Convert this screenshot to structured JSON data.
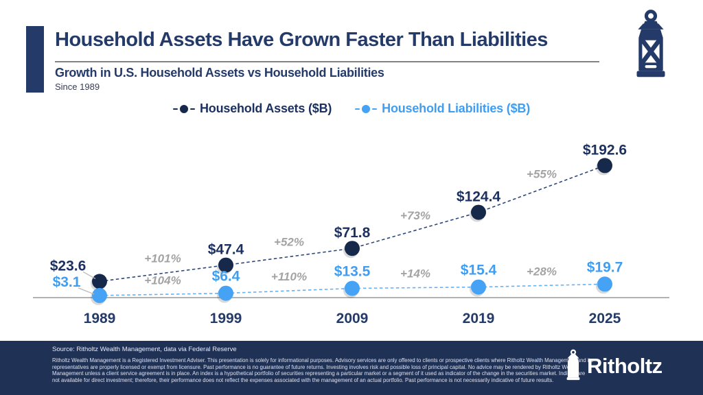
{
  "header": {
    "title": "Household Assets Have Grown Faster Than Liabilities",
    "subtitle": "Growth in U.S. Household Assets vs Household Liabilities",
    "since": "Since 1989"
  },
  "legend": [
    {
      "label": "Household Assets ($B)",
      "color": "#16294b",
      "text_color": "#1d3160"
    },
    {
      "label": "Household Liabilities ($B)",
      "color": "#46a2f4",
      "text_color": "#3f9ef2"
    }
  ],
  "chart_data": {
    "type": "line",
    "categories": [
      "1989",
      "1999",
      "2009",
      "2019",
      "2025"
    ],
    "series": [
      {
        "name": "Household Assets ($B)",
        "values": [
          23.6,
          47.4,
          71.8,
          124.4,
          192.6
        ],
        "point_labels": [
          "$23.6",
          "$47.4",
          "$71.8",
          "$124.4",
          "$192.6"
        ],
        "growth_labels": [
          "+101%",
          "+52%",
          "+73%",
          "+55%"
        ],
        "color": "#16294b",
        "line_color": "#2e4678",
        "label_color": "#1d3160"
      },
      {
        "name": "Household Liabilities ($B)",
        "values": [
          3.1,
          6.4,
          13.5,
          15.4,
          19.7
        ],
        "point_labels": [
          "$3.1",
          "$6.4",
          "$13.5",
          "$15.4",
          "$19.7"
        ],
        "growth_labels": [
          "+104%",
          "+110%",
          "+14%",
          "+28%"
        ],
        "color": "#46a2f4",
        "line_color": "#63b0f6",
        "label_color": "#3f9ef2"
      }
    ],
    "title": "Growth in U.S. Household Assets vs Household Liabilities",
    "xlabel": "",
    "ylabel": "",
    "ylim": [
      0,
      200
    ],
    "grid": false,
    "line_style": "dashed",
    "legend_position": "top",
    "growth_label_color": "#a3a3a3",
    "axis_color": "#b1b1b1",
    "year_label_color": "#243a68"
  },
  "footer": {
    "source": "Source: Ritholtz Wealth Management, data via Federal Reserve",
    "disclaimer": "Ritholtz Wealth Management is a Registered Investment Adviser. This presentation is solely for informational purposes. Advisory services are only offered to clients or prospective clients where Ritholtz Wealth Management and its representatives are properly licensed or exempt from licensure. Past performance is no guarantee of future returns. Investing involves risk and possible loss of principal capital. No advice may be rendered by Ritholtz Wealth Management unless a client service agreement is in place. An index is a hypothetical portfolio of securities representing a particular market or a segment of it used as indicator of the change in the securities market. Indices are not available for direct investment; therefore, their performance does not reflect the expenses associated with the management of an actual portfolio. Past performance is not necessarily indicative of future results.",
    "brand": "Ritholtz"
  }
}
